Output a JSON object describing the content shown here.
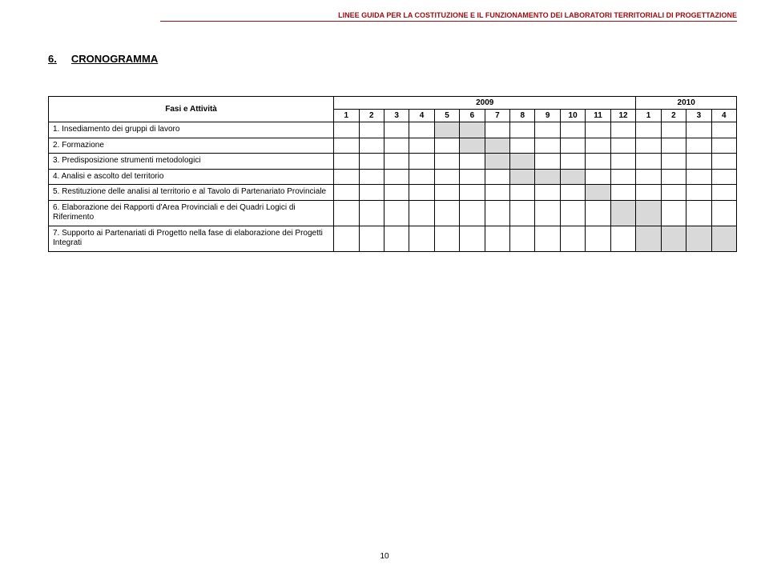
{
  "header": {
    "text": "LINEE GUIDA PER LA COSTITUZIONE E IL FUNZIONAMENTO DEI LABORATORI TERRITORIALI DI PROGETTAZIONE",
    "color": "#9e0b0f"
  },
  "section": {
    "number": "6.",
    "title": "CRONOGRAMMA"
  },
  "chart": {
    "type": "gantt-table",
    "activity_header": "Fasi e Attività",
    "years": [
      "2009",
      "2010"
    ],
    "year_spans": [
      12,
      4
    ],
    "months": [
      "1",
      "2",
      "3",
      "4",
      "5",
      "6",
      "7",
      "8",
      "9",
      "10",
      "11",
      "12",
      "1",
      "2",
      "3",
      "4"
    ],
    "rows": [
      {
        "label": "1. Insediamento dei gruppi di lavoro",
        "shaded": [
          0,
          0,
          0,
          0,
          1,
          1,
          0,
          0,
          0,
          0,
          0,
          0,
          0,
          0,
          0,
          0
        ]
      },
      {
        "label": "2. Formazione",
        "shaded": [
          0,
          0,
          0,
          0,
          0,
          1,
          1,
          0,
          0,
          0,
          0,
          0,
          0,
          0,
          0,
          0
        ]
      },
      {
        "label": "3. Predisposizione strumenti metodologici",
        "shaded": [
          0,
          0,
          0,
          0,
          0,
          0,
          1,
          1,
          0,
          0,
          0,
          0,
          0,
          0,
          0,
          0
        ]
      },
      {
        "label": "4. Analisi e ascolto del territorio",
        "shaded": [
          0,
          0,
          0,
          0,
          0,
          0,
          0,
          1,
          1,
          1,
          0,
          0,
          0,
          0,
          0,
          0
        ]
      },
      {
        "label": "5. Restituzione delle analisi al territorio e al Tavolo di Partenariato Provinciale",
        "shaded": [
          0,
          0,
          0,
          0,
          0,
          0,
          0,
          0,
          0,
          0,
          1,
          0,
          0,
          0,
          0,
          0
        ]
      },
      {
        "label": "6. Elaborazione dei Rapporti d'Area Provinciali e dei Quadri Logici di Riferimento",
        "shaded": [
          0,
          0,
          0,
          0,
          0,
          0,
          0,
          0,
          0,
          0,
          0,
          1,
          1,
          0,
          0,
          0
        ]
      },
      {
        "label": "7. Supporto ai Partenariati di Progetto nella fase di elaborazione dei Progetti Integrati",
        "shaded": [
          0,
          0,
          0,
          0,
          0,
          0,
          0,
          0,
          0,
          0,
          0,
          0,
          1,
          1,
          1,
          1
        ]
      }
    ],
    "shaded_color": "#d9d9d9",
    "border_color": "#000000",
    "background_color": "#ffffff",
    "header_fontsize": 10,
    "cell_fontsize": 10
  },
  "page_number": "10"
}
